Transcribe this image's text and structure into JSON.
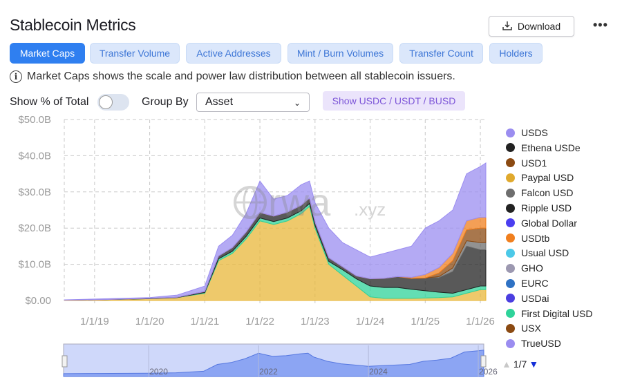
{
  "header": {
    "title": "Stablecoin Metrics",
    "download_label": "Download",
    "more_icon": "•••"
  },
  "tabs": [
    {
      "label": "Market Caps",
      "active": true
    },
    {
      "label": "Transfer Volume"
    },
    {
      "label": "Active Addresses"
    },
    {
      "label": "Mint / Burn Volumes"
    },
    {
      "label": "Transfer Count"
    },
    {
      "label": "Holders"
    }
  ],
  "info": "Market Caps shows the scale and power law distribution between all stablecoin issuers.",
  "controls": {
    "show_pct_label": "Show % of Total",
    "show_pct_on": false,
    "group_by_label": "Group By",
    "group_by_value": "Asset",
    "show_major_label": "Show USDC / USDT / BUSD"
  },
  "watermark": "rwa.xyz",
  "legend_pager": "1/7",
  "chart_data": {
    "type": "area",
    "stacked": true,
    "title": "",
    "xlabel": "",
    "ylabel": "",
    "ylim": [
      0,
      50
    ],
    "yticks": [
      "$0.00",
      "$10.0B",
      "$20.0B",
      "$30.0B",
      "$40.0B",
      "$50.0B"
    ],
    "xticks": [
      "1/1/19",
      "1/1/20",
      "1/1/21",
      "1/1/22",
      "1/1/23",
      "1/1/24",
      "1/1/25",
      "1/1/26"
    ],
    "xrange": [
      2018.45,
      2026.1
    ],
    "grid": true,
    "legend_placement": "right",
    "x": [
      2018.45,
      2019.0,
      2020.0,
      2020.5,
      2021.0,
      2021.25,
      2021.5,
      2021.75,
      2022.0,
      2022.25,
      2022.5,
      2022.75,
      2022.9,
      2023.0,
      2023.25,
      2023.5,
      2023.75,
      2024.0,
      2024.25,
      2024.5,
      2024.75,
      2025.0,
      2025.25,
      2025.5,
      2025.75,
      2026.0,
      2026.1
    ],
    "series": [
      {
        "name": "Paypal USD",
        "color": "#e8b739",
        "values": [
          0.1,
          0.2,
          0.5,
          0.8,
          2,
          11,
          13,
          17,
          22,
          21,
          22,
          24,
          26,
          20,
          10,
          7,
          4,
          1,
          0.6,
          0.6,
          0.6,
          0.7,
          0.8,
          1,
          2,
          3,
          3
        ]
      },
      {
        "name": "First Digital USD",
        "color": "#2fd39a",
        "values": [
          0,
          0,
          0,
          0,
          0.2,
          0.5,
          0.6,
          0.7,
          0.8,
          0.8,
          0.8,
          0.8,
          0.8,
          0.7,
          0.8,
          1.5,
          2,
          3,
          3,
          3,
          2.5,
          2,
          1.5,
          1,
          1,
          1,
          1
        ]
      },
      {
        "name": "Ethena USDe",
        "color": "#222222",
        "values": [
          0,
          0,
          0.1,
          0.1,
          0.3,
          0.8,
          1,
          1.2,
          1.5,
          1.5,
          1.6,
          1.5,
          1.5,
          1,
          1,
          0.8,
          0.8,
          2,
          2.5,
          3,
          3,
          3.5,
          4,
          6,
          12,
          10,
          10
        ]
      },
      {
        "name": "Falcon USD",
        "color": "#6e6e6e",
        "values": [
          0,
          0,
          0,
          0,
          0,
          0,
          0,
          0,
          0,
          0,
          0,
          0,
          0,
          0,
          0,
          0,
          0,
          0,
          0,
          0,
          0,
          0,
          0.3,
          1,
          1.5,
          2,
          2
        ]
      },
      {
        "name": "USD1",
        "color": "#8b4a12",
        "values": [
          0,
          0,
          0,
          0,
          0,
          0,
          0,
          0,
          0,
          0,
          0,
          0,
          0,
          0,
          0,
          0,
          0,
          0,
          0,
          0,
          0,
          0,
          1,
          2,
          3,
          4,
          4
        ]
      },
      {
        "name": "USDtb",
        "color": "#f07f1e",
        "values": [
          0,
          0,
          0,
          0,
          0,
          0,
          0,
          0,
          0,
          0,
          0,
          0,
          0,
          0,
          0,
          0,
          0,
          0,
          0,
          0,
          0.3,
          1,
          1.5,
          2,
          2.5,
          3,
          3
        ]
      },
      {
        "name": "USDS",
        "color": "#9b8df0",
        "values": [
          0.1,
          0.2,
          0.2,
          0.6,
          1.5,
          2.7,
          3.4,
          5.1,
          8.7,
          4.7,
          4.6,
          5.7,
          4.7,
          5.3,
          8.2,
          6.7,
          7.2,
          6,
          6.9,
          7.4,
          8.6,
          12.8,
          12.9,
          12,
          13,
          14,
          15
        ]
      }
    ],
    "legend": [
      {
        "name": "USDS",
        "color": "#9b8df0"
      },
      {
        "name": "Ethena USDe",
        "color": "#222222"
      },
      {
        "name": "USD1",
        "color": "#8b4a12"
      },
      {
        "name": "Paypal USD",
        "color": "#e0a92d"
      },
      {
        "name": "Falcon USD",
        "color": "#6e6e6e"
      },
      {
        "name": "Ripple USD",
        "color": "#222222"
      },
      {
        "name": "Global Dollar",
        "color": "#4b3ef0"
      },
      {
        "name": "USDtb",
        "color": "#f07f1e"
      },
      {
        "name": "Usual USD",
        "color": "#4cc9e8"
      },
      {
        "name": "GHO",
        "color": "#9c98b0"
      },
      {
        "name": "EURC",
        "color": "#2f72c4"
      },
      {
        "name": "USDai",
        "color": "#4b3ee0"
      },
      {
        "name": "First Digital USD",
        "color": "#2fd39a"
      },
      {
        "name": "USX",
        "color": "#8b4a12"
      },
      {
        "name": "TrueUSD",
        "color": "#9b8df0"
      }
    ],
    "navigator": {
      "labels": [
        "2020",
        "2022",
        "2024",
        "2026"
      ],
      "range": [
        2018.45,
        2026.1
      ]
    }
  }
}
